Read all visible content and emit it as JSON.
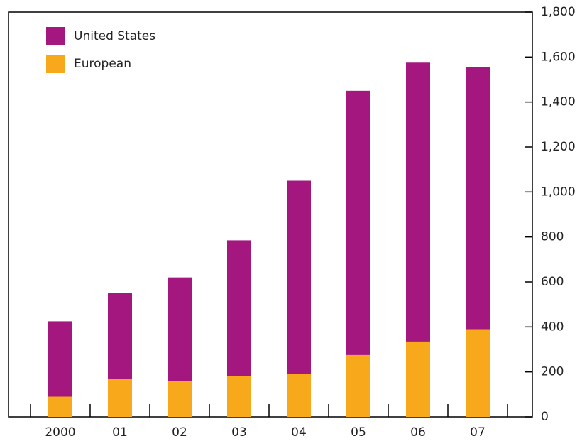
{
  "chart_data": {
    "type": "stacked_bar",
    "categories": [
      "2000",
      "01",
      "02",
      "03",
      "04",
      "05",
      "06",
      "07"
    ],
    "series": [
      {
        "name": "United States",
        "color": "#a3177f",
        "values": [
          335,
          380,
          460,
          605,
          860,
          1175,
          1240,
          1165
        ]
      },
      {
        "name": "European",
        "color": "#f7a81b",
        "values": [
          90,
          170,
          160,
          180,
          190,
          275,
          335,
          390
        ]
      }
    ],
    "ylim": [
      0,
      1800
    ],
    "yticks": [
      0,
      200,
      400,
      600,
      800,
      {
        "value": 1000,
        "label": "1,000"
      },
      {
        "value": 1200,
        "label": "1,200"
      },
      {
        "value": 1400,
        "label": "1,400"
      },
      {
        "value": 1600,
        "label": "1,600"
      },
      {
        "value": 1800,
        "label": "1,800"
      }
    ],
    "legend": "upper left"
  }
}
